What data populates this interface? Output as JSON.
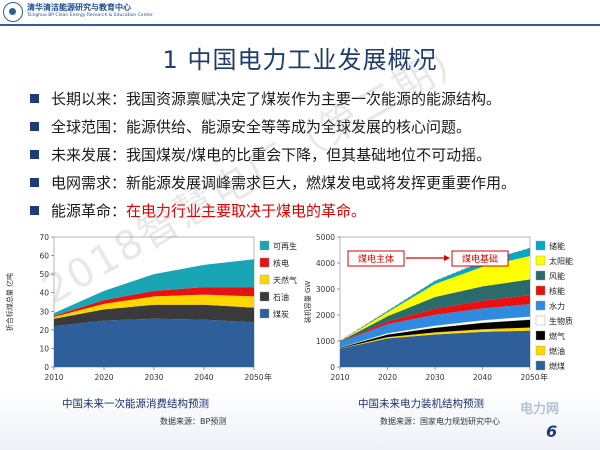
{
  "header": {
    "org_cn": "清华清洁能源研究与教育中心",
    "org_en": "Tsinghua BP Clean Energy Research & Education Center"
  },
  "title": "1 中国电力工业发展概况",
  "bullets": [
    {
      "label": "长期以来：",
      "text": "我国资源禀赋决定了煤炭作为主要一次能源的能源结构。",
      "color": "#1a1a1a"
    },
    {
      "label": "全球范围：",
      "text": "能源供给、能源安全等等成为全球发展的核心问题。",
      "color": "#1a1a1a"
    },
    {
      "label": "未来发展：",
      "text": "我国煤炭/煤电的比重会下降，但其基础地位不可动摇。",
      "color": "#1a1a1a"
    },
    {
      "label": "电网需求：",
      "text": "新能源发展调峰需求巨大，燃煤发电或将发挥更重要作用。",
      "color": "#1a1a1a"
    },
    {
      "label": "能源革命：",
      "text": "在电力行业主要取决于煤电的革命。",
      "color": "#e00000"
    }
  ],
  "watermark": "2018智慧电厂（第二期）",
  "corner_logo": "电力网",
  "page_number": "6",
  "chart_data": [
    {
      "type": "area",
      "stacked": true,
      "title": "中国未来一次能源消费结构预测",
      "source": "数据来源：BP预测",
      "ylabel": "折合标煤总量  亿吨",
      "xlabel": "年",
      "x": [
        2010,
        2020,
        2030,
        2040,
        2050
      ],
      "xticks": [
        "2010",
        "2020",
        "2030",
        "2040",
        "2050"
      ],
      "ylim": [
        0,
        70
      ],
      "yticks": [
        "0",
        "10",
        "20",
        "30",
        "40",
        "50",
        "60",
        "70"
      ],
      "series": [
        {
          "name": "煤炭",
          "color": "#2f5f9a",
          "values": [
            22,
            25,
            26,
            25.5,
            24
          ]
        },
        {
          "name": "石油",
          "color": "#3a3a3a",
          "values": [
            4,
            6,
            7.5,
            8,
            8
          ]
        },
        {
          "name": "天然气",
          "color": "#ffd700",
          "values": [
            1,
            3,
            4.5,
            5.5,
            6
          ]
        },
        {
          "name": "核电",
          "color": "#e81010",
          "values": [
            0.5,
            2,
            3,
            4,
            5
          ]
        },
        {
          "name": "可再生",
          "color": "#1aa5b5",
          "values": [
            1.5,
            5,
            9,
            12,
            15
          ]
        }
      ]
    },
    {
      "type": "area",
      "stacked": true,
      "title": "中国未来电力装机结构预测",
      "source": "数据来源：国家电力规划研究中心",
      "ylabel": "装机容量  GW",
      "xlabel": "年",
      "x": [
        2010,
        2020,
        2030,
        2040,
        2050
      ],
      "xticks": [
        "2010",
        "2020",
        "2030",
        "2040",
        "2050"
      ],
      "ylim": [
        0,
        5000
      ],
      "yticks": [
        "0",
        "1000",
        "2000",
        "3000",
        "4000",
        "5000"
      ],
      "annotations": [
        "煤电主体",
        "煤电基础"
      ],
      "series": [
        {
          "name": "燃煤",
          "color": "#2f5f9a",
          "values": [
            700,
            1100,
            1250,
            1350,
            1400
          ]
        },
        {
          "name": "燃油",
          "color": "#ffd700",
          "values": [
            10,
            50,
            80,
            100,
            120
          ]
        },
        {
          "name": "燃气",
          "color": "#000000",
          "values": [
            30,
            100,
            180,
            250,
            300
          ]
        },
        {
          "name": "生物质",
          "color": "#ffffff",
          "values": [
            10,
            50,
            80,
            100,
            120
          ]
        },
        {
          "name": "水力",
          "color": "#2e8be0",
          "values": [
            200,
            350,
            420,
            450,
            480
          ]
        },
        {
          "name": "核能",
          "color": "#e81010",
          "values": [
            10,
            100,
            230,
            300,
            350
          ]
        },
        {
          "name": "风能",
          "color": "#2a6b6b",
          "values": [
            30,
            200,
            450,
            550,
            600
          ]
        },
        {
          "name": "太阳能",
          "color": "#ffff00",
          "values": [
            5,
            150,
            500,
            750,
            900
          ]
        },
        {
          "name": "储能",
          "color": "#00a8c8",
          "values": [
            5,
            50,
            120,
            200,
            300
          ]
        }
      ]
    }
  ]
}
